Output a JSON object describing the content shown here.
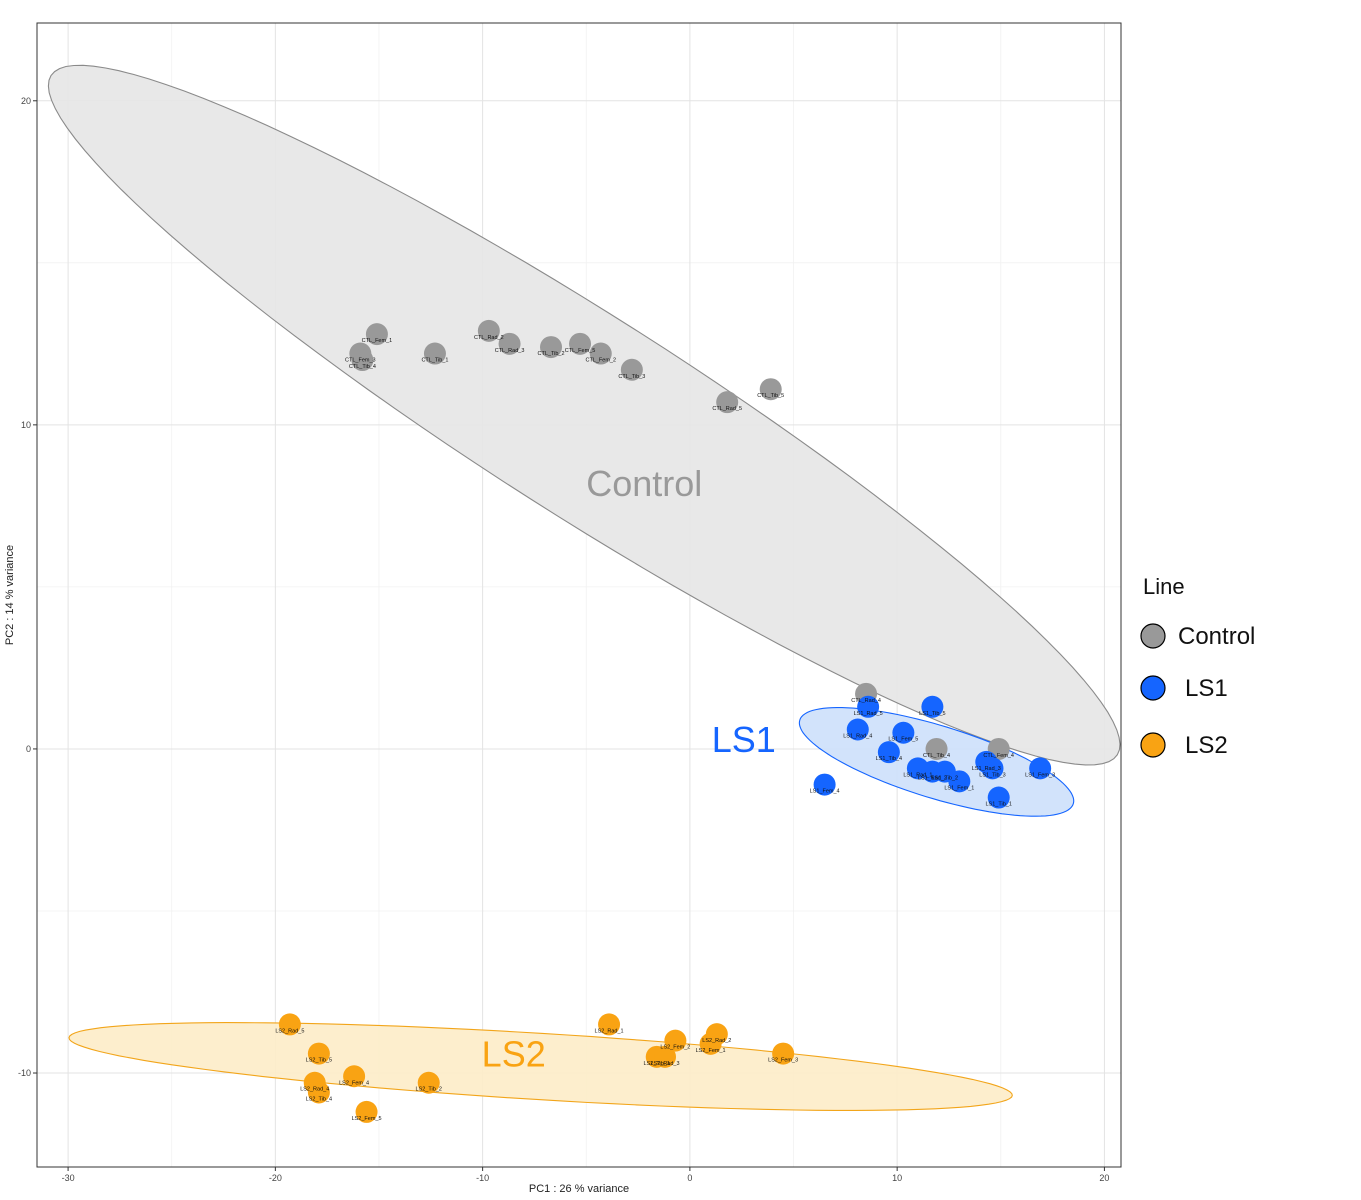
{
  "chart_data": {
    "type": "scatter",
    "xlabel": "PC1 : 26 % variance",
    "ylabel": "PC2 : 14 % variance",
    "xlim": [
      -31.5,
      20.8
    ],
    "ylim": [
      -12.9,
      22.4
    ],
    "x_ticks": [
      -30,
      -20,
      -10,
      0,
      10,
      20
    ],
    "y_ticks": [
      -10,
      0,
      10,
      20
    ],
    "grid": true,
    "legend_title": "Line",
    "legend_position": "right",
    "series": [
      {
        "name": "Control",
        "color": "#999999",
        "ellipse_fill": "#e6e6e6",
        "ellipse_stroke": "#8a8a8a",
        "ellipse": {
          "cx": -5.1,
          "cy": 10.3,
          "rx": 30.5,
          "ry": 4.8,
          "angle_deg": -32.5
        },
        "group_label": {
          "text": "Control",
          "x": -2.2,
          "y": 7.8
        },
        "points": [
          {
            "x": -15.1,
            "y": 12.8,
            "label": "CTL_Fem_1"
          },
          {
            "x": -15.9,
            "y": 12.2,
            "label": "CTL_Fem_3"
          },
          {
            "x": -15.8,
            "y": 12.0,
            "label": "CTL_Tib_4"
          },
          {
            "x": -12.3,
            "y": 12.2,
            "label": "CTL_Tib_1"
          },
          {
            "x": -9.7,
            "y": 12.9,
            "label": "CTL_Rad_2"
          },
          {
            "x": -8.7,
            "y": 12.5,
            "label": "CTL_Rad_3"
          },
          {
            "x": -6.7,
            "y": 12.4,
            "label": "CTL_Tib_2"
          },
          {
            "x": -5.3,
            "y": 12.5,
            "label": "CTL_Fem_5"
          },
          {
            "x": -4.3,
            "y": 12.2,
            "label": "CTL_Fem_2"
          },
          {
            "x": -2.8,
            "y": 11.7,
            "label": "CTL_Tib_3"
          },
          {
            "x": 1.8,
            "y": 10.7,
            "label": "CTL_Rad_5"
          },
          {
            "x": 3.9,
            "y": 11.1,
            "label": "CTL_Tib_5"
          },
          {
            "x": 8.5,
            "y": 1.7,
            "label": "CTL_Rad_4"
          },
          {
            "x": 11.9,
            "y": 0.0,
            "label": "CTL_Tib_4"
          },
          {
            "x": 14.9,
            "y": 0.0,
            "label": "CTL_Fem_4"
          }
        ]
      },
      {
        "name": "LS1",
        "color": "#1565ff",
        "ellipse_fill": "#cde0fb",
        "ellipse_stroke": "#1565ff",
        "ellipse": {
          "cx": 11.9,
          "cy": -0.4,
          "rx": 6.9,
          "ry": 1.75,
          "angle_deg": -17
        },
        "group_label": {
          "text": "LS1",
          "x": 2.6,
          "y": -0.1
        },
        "points": [
          {
            "x": 8.6,
            "y": 1.3,
            "label": "LS1_Rad_5"
          },
          {
            "x": 8.1,
            "y": 0.6,
            "label": "LS1_Rad_4"
          },
          {
            "x": 11.7,
            "y": 1.3,
            "label": "LS1_Tib_5"
          },
          {
            "x": 10.3,
            "y": 0.5,
            "label": "LS1_Fem_5"
          },
          {
            "x": 9.6,
            "y": -0.1,
            "label": "LS1_Tib_4"
          },
          {
            "x": 11.0,
            "y": -0.6,
            "label": "LS1_Rad_1"
          },
          {
            "x": 11.7,
            "y": -0.7,
            "label": "LS1_Rad_2"
          },
          {
            "x": 12.3,
            "y": -0.7,
            "label": "LS1_Tib_2"
          },
          {
            "x": 13.0,
            "y": -1.0,
            "label": "LS1_Fem_1"
          },
          {
            "x": 14.3,
            "y": -0.4,
            "label": "LS1_Rad_3"
          },
          {
            "x": 14.6,
            "y": -0.6,
            "label": "LS1_Tib_3"
          },
          {
            "x": 16.9,
            "y": -0.6,
            "label": "LS1_Fem_3"
          },
          {
            "x": 14.9,
            "y": -1.5,
            "label": "LS1_Tib_1"
          },
          {
            "x": 6.5,
            "y": -1.1,
            "label": "LS1_Fem_4"
          }
        ]
      },
      {
        "name": "LS2",
        "color": "#f9a313",
        "ellipse_fill": "#fdecc8",
        "ellipse_stroke": "#f2a51a",
        "ellipse": {
          "cx": -7.2,
          "cy": -9.8,
          "rx": 22.8,
          "ry": 1.6,
          "angle_deg": -3.5
        },
        "group_label": {
          "text": "LS2",
          "x": -8.5,
          "y": -9.8
        },
        "points": [
          {
            "x": -19.3,
            "y": -8.5,
            "label": "LS2_Rad_5"
          },
          {
            "x": -17.9,
            "y": -9.4,
            "label": "LS2_Tib_5"
          },
          {
            "x": -18.1,
            "y": -10.3,
            "label": "LS2_Rad_4"
          },
          {
            "x": -17.9,
            "y": -10.6,
            "label": "LS2_Tib_4"
          },
          {
            "x": -16.2,
            "y": -10.1,
            "label": "LS2_Fem_4"
          },
          {
            "x": -15.6,
            "y": -11.2,
            "label": "LS2_Fem_5"
          },
          {
            "x": -12.6,
            "y": -10.3,
            "label": "LS2_Tib_2"
          },
          {
            "x": -3.9,
            "y": -8.5,
            "label": "LS2_Rad_1"
          },
          {
            "x": -1.6,
            "y": -9.5,
            "label": "LS2_Tib_1"
          },
          {
            "x": -1.2,
            "y": -9.5,
            "label": "LS2_Rad_3"
          },
          {
            "x": -0.7,
            "y": -9.0,
            "label": "LS2_Fem_2"
          },
          {
            "x": 1.3,
            "y": -8.8,
            "label": "LS2_Rad_2"
          },
          {
            "x": 1.0,
            "y": -9.1,
            "label": "LS2_Fem_1"
          },
          {
            "x": 4.5,
            "y": -9.4,
            "label": "LS2_Fem_3"
          }
        ]
      }
    ]
  }
}
